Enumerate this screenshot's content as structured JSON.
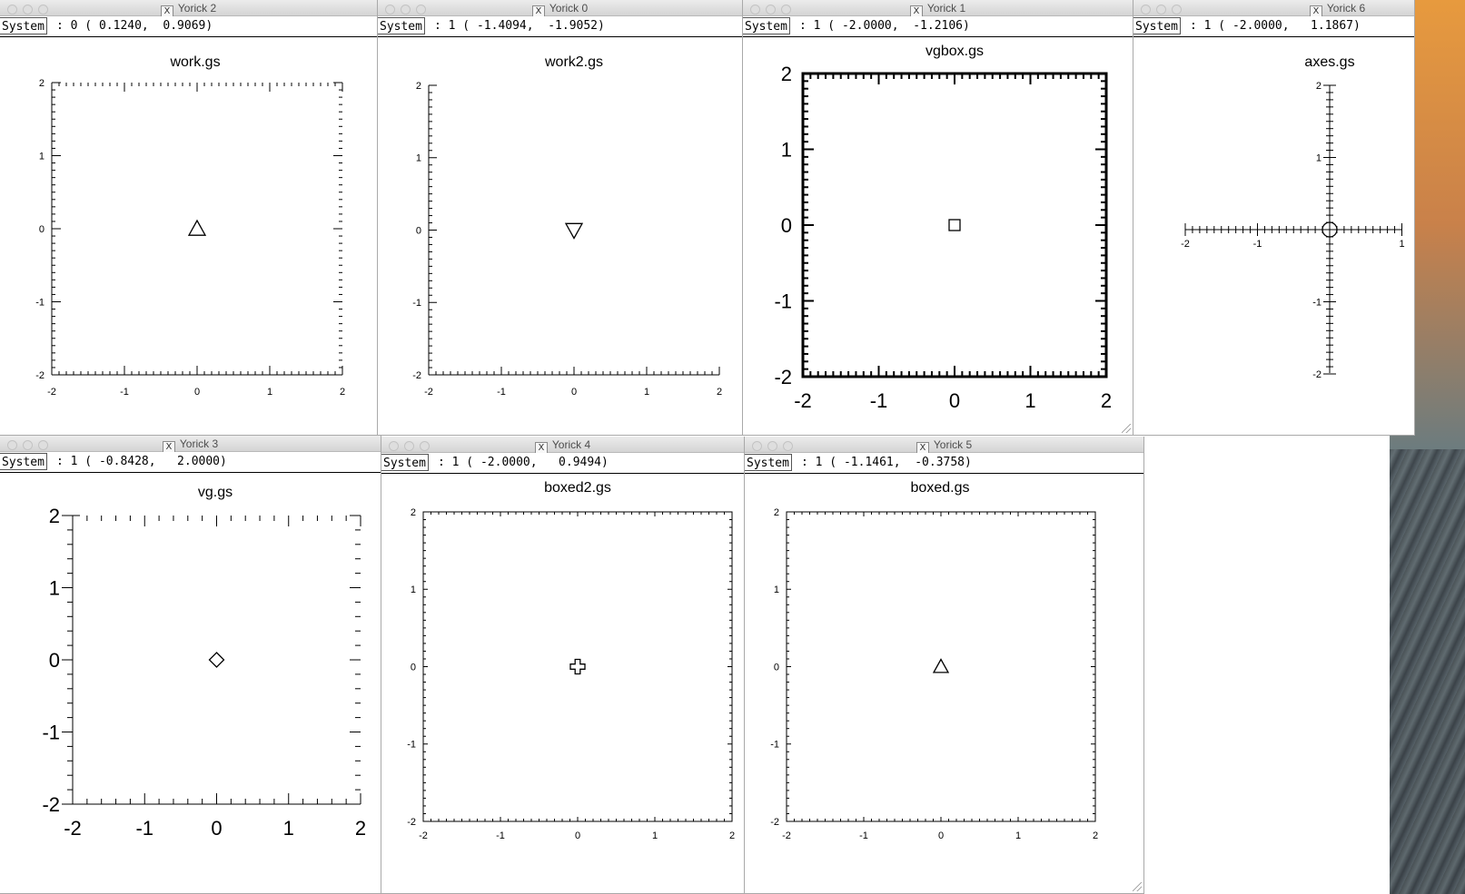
{
  "system_label": "System",
  "windows": [
    {
      "key": "w2",
      "title": "Yorick 2",
      "coords": ": 0 ( 0.1240,  0.9069)",
      "plot": {
        "title": "work.gs",
        "style": "work",
        "marker": "triangle-up"
      }
    },
    {
      "key": "w0",
      "title": "Yorick 0",
      "coords": ": 1 ( -1.4094,  -1.9052)",
      "plot": {
        "title": "work2.gs",
        "style": "work2",
        "marker": "triangle-down"
      }
    },
    {
      "key": "w1",
      "title": "Yorick 1",
      "coords": ": 1 ( -2.0000,  -1.2106)",
      "plot": {
        "title": "vgbox.gs",
        "style": "vgbox",
        "marker": "square"
      }
    },
    {
      "key": "w6",
      "title": "Yorick 6",
      "coords": ": 1 ( -2.0000,   1.1867)",
      "plot": {
        "title": "axes.gs",
        "style": "axes",
        "marker": "circle"
      }
    },
    {
      "key": "w3",
      "title": "Yorick 3",
      "coords": ": 1 ( -0.8428,   2.0000)",
      "plot": {
        "title": "vg.gs",
        "style": "vg",
        "marker": "diamond"
      }
    },
    {
      "key": "w4",
      "title": "Yorick 4",
      "coords": ": 1 ( -2.0000,   0.9494)",
      "plot": {
        "title": "boxed2.gs",
        "style": "boxed",
        "marker": "plus"
      }
    },
    {
      "key": "w5",
      "title": "Yorick 5",
      "coords": ": 1 ( -1.1461,  -0.3758)",
      "plot": {
        "title": "boxed.gs",
        "style": "boxed",
        "marker": "triangle-up"
      }
    }
  ],
  "chart_data": [
    {
      "window": "Yorick 2",
      "type": "scatter",
      "title": "work.gs",
      "xlim": [
        -2,
        2
      ],
      "ylim": [
        -2,
        2
      ],
      "x_ticks": [
        "-2",
        "-1",
        "0",
        "1",
        "2"
      ],
      "y_ticks": [
        "-2",
        "-1",
        "0",
        "1",
        "2"
      ],
      "series": [
        {
          "x": [
            0
          ],
          "y": [
            0
          ],
          "marker": "triangle-up"
        }
      ]
    },
    {
      "window": "Yorick 0",
      "type": "scatter",
      "title": "work2.gs",
      "xlim": [
        -2,
        2
      ],
      "ylim": [
        -2,
        2
      ],
      "x_ticks": [
        "-2",
        "-1",
        "0",
        "1",
        "2"
      ],
      "y_ticks": [
        "-2",
        "-1",
        "0",
        "1",
        "2"
      ],
      "series": [
        {
          "x": [
            0
          ],
          "y": [
            0
          ],
          "marker": "triangle-down"
        }
      ]
    },
    {
      "window": "Yorick 1",
      "type": "scatter",
      "title": "vgbox.gs",
      "xlim": [
        -2,
        2
      ],
      "ylim": [
        -2,
        2
      ],
      "x_ticks": [
        "-2",
        "-1",
        "0",
        "1",
        "2"
      ],
      "y_ticks": [
        "-2",
        "-1",
        "0",
        "1",
        "2"
      ],
      "series": [
        {
          "x": [
            0
          ],
          "y": [
            0
          ],
          "marker": "square"
        }
      ]
    },
    {
      "window": "Yorick 6",
      "type": "scatter",
      "title": "axes.gs",
      "xlim": [
        -2,
        1
      ],
      "ylim": [
        -2,
        2
      ],
      "x_ticks": [
        "-2",
        "-1",
        "1"
      ],
      "y_ticks": [
        "-2",
        "-1",
        "1",
        "2"
      ],
      "series": [
        {
          "x": [
            0
          ],
          "y": [
            0
          ],
          "marker": "circle"
        }
      ]
    },
    {
      "window": "Yorick 3",
      "type": "scatter",
      "title": "vg.gs",
      "xlim": [
        -2,
        2
      ],
      "ylim": [
        -2,
        2
      ],
      "x_ticks": [
        "-2",
        "-1",
        "0",
        "1",
        "2"
      ],
      "y_ticks": [
        "-2",
        "-1",
        "0",
        "1",
        "2"
      ],
      "series": [
        {
          "x": [
            0
          ],
          "y": [
            0
          ],
          "marker": "diamond"
        }
      ]
    },
    {
      "window": "Yorick 4",
      "type": "scatter",
      "title": "boxed2.gs",
      "xlim": [
        -2,
        2
      ],
      "ylim": [
        -2,
        2
      ],
      "x_ticks": [
        "-2",
        "-1",
        "0",
        "1",
        "2"
      ],
      "y_ticks": [
        "-2",
        "-1",
        "0",
        "1",
        "2"
      ],
      "series": [
        {
          "x": [
            0
          ],
          "y": [
            0
          ],
          "marker": "plus"
        }
      ]
    },
    {
      "window": "Yorick 5",
      "type": "scatter",
      "title": "boxed.gs",
      "xlim": [
        -2,
        2
      ],
      "ylim": [
        -2,
        2
      ],
      "x_ticks": [
        "-2",
        "-1",
        "0",
        "1",
        "2"
      ],
      "y_ticks": [
        "-2",
        "-1",
        "0",
        "1",
        "2"
      ],
      "series": [
        {
          "x": [
            0
          ],
          "y": [
            0
          ],
          "marker": "triangle-up"
        }
      ]
    }
  ]
}
